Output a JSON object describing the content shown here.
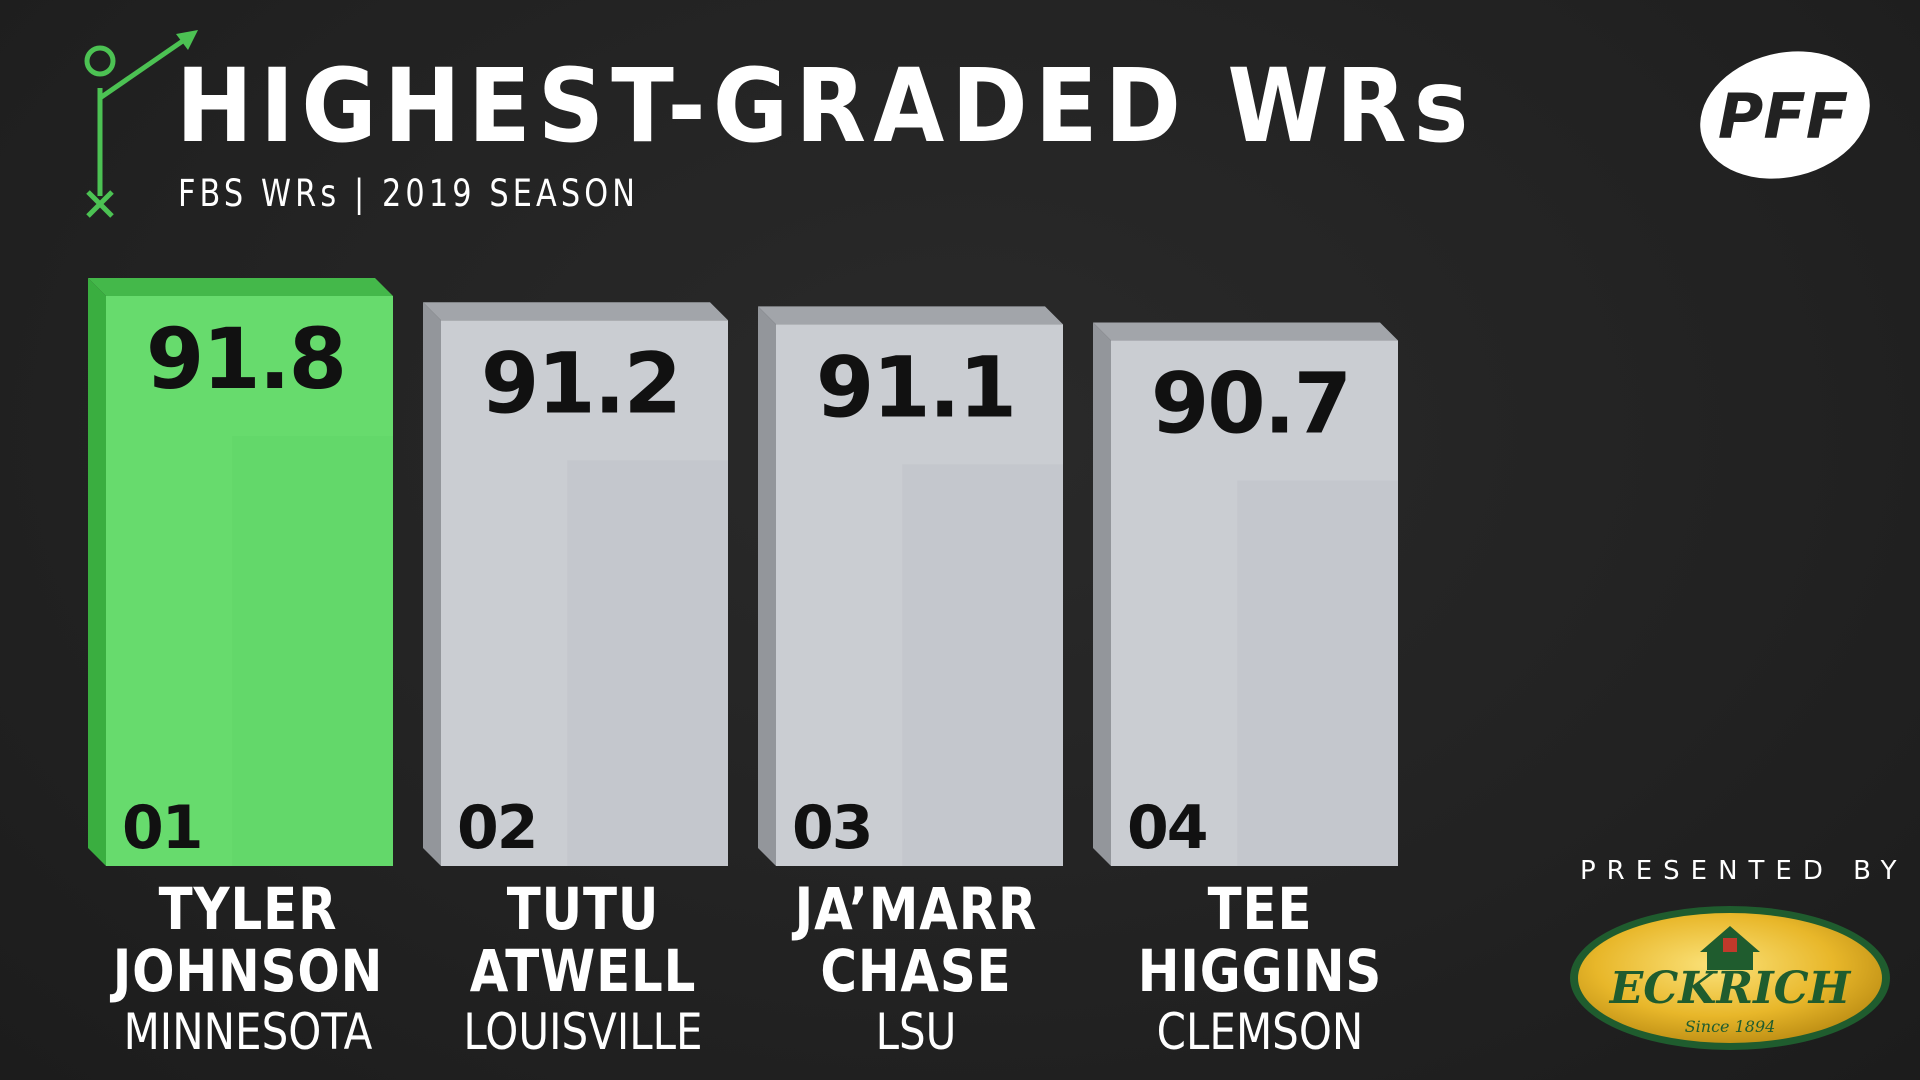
{
  "header": {
    "title": "HIGHEST-GRADED WRs",
    "subtitle": "FBS WRs | 2019 SEASON"
  },
  "brand": {
    "logo_text": "PFF",
    "presented_by": "PRESENTED BY",
    "sponsor_name": "ECKRICH",
    "sponsor_tagline": "Since 1894"
  },
  "colors": {
    "background": "#232323",
    "highlight_bar": "#67DB6D",
    "bar": "#CACDD2",
    "accent_green": "#5BC95F"
  },
  "chart_data": {
    "type": "bar",
    "title": "HIGHEST-GRADED WRs",
    "subtitle": "FBS WRs | 2019 SEASON",
    "categories": [
      "TYLER JOHNSON",
      "TUTU ATWELL",
      "JA'MARR CHASE",
      "TEE HIGGINS"
    ],
    "values": [
      91.8,
      91.2,
      91.1,
      90.7
    ],
    "value_labels": [
      "91.8",
      "91.2",
      "91.1",
      "90.7"
    ],
    "ranks": [
      "01",
      "02",
      "03",
      "04"
    ],
    "highlight_index": 0,
    "grid": false,
    "legend": "none"
  },
  "players": [
    {
      "first": "TYLER",
      "last": "JOHNSON",
      "school": "MINNESOTA"
    },
    {
      "first": "TUTU",
      "last": "ATWELL",
      "school": "LOUISVILLE"
    },
    {
      "first": "JA’MARR",
      "last": "CHASE",
      "school": "LSU"
    },
    {
      "first": "TEE",
      "last": "HIGGINS",
      "school": "CLEMSON"
    }
  ],
  "icons": {
    "play_diagram": "play-route-icon",
    "logo": "pff-logo",
    "sponsor": "eckrich-logo"
  }
}
